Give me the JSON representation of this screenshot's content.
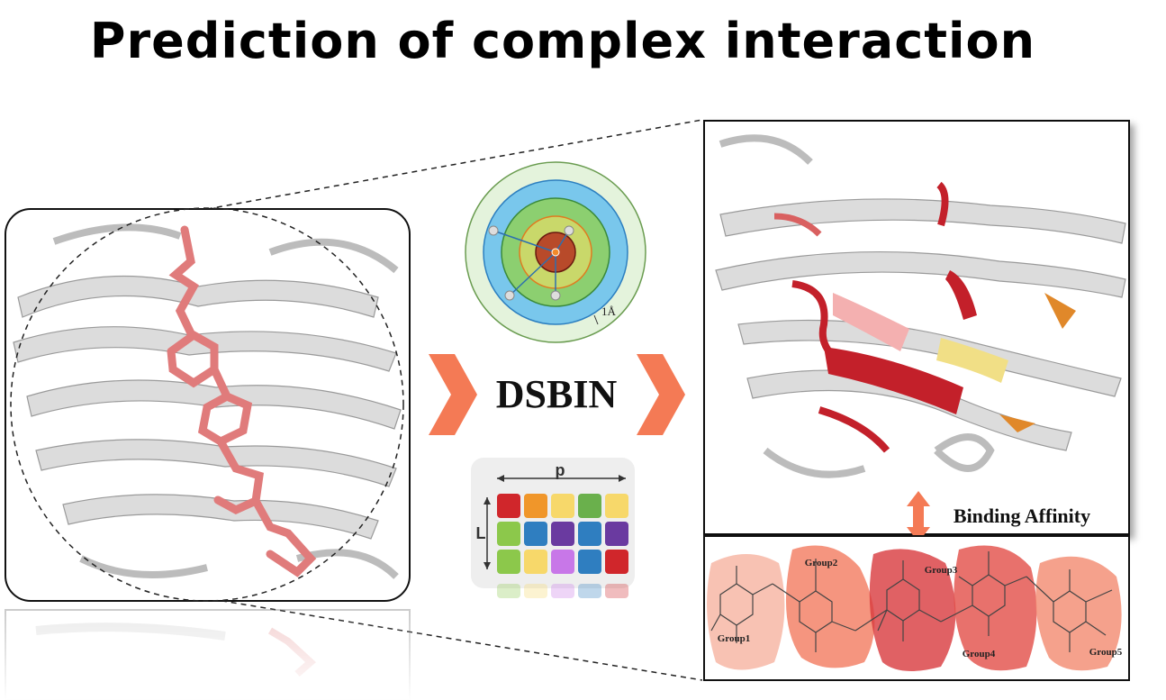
{
  "title": "Prediction of complex interaction",
  "method_label": "DSBIN",
  "shell_width_label": "1Å",
  "matrix": {
    "width_label": "p",
    "height_label": "L",
    "cell_colors": [
      [
        "#d0262b",
        "#f0962a",
        "#f7d86a",
        "#6ab04c",
        "#f7d86a"
      ],
      [
        "#8cc84b",
        "#2f7ec0",
        "#6a3aa0",
        "#2f7ec0",
        "#6a3aa0"
      ],
      [
        "#8cc84b",
        "#f7d86a",
        "#c877e8",
        "#2f7ec0",
        "#d0262b"
      ]
    ]
  },
  "binding_label": "Binding Affinity",
  "groups": [
    {
      "label": "Group1",
      "color": "#f6b3a0"
    },
    {
      "label": "Group2",
      "color": "#f27a5f"
    },
    {
      "label": "Group3",
      "color": "#d8393d"
    },
    {
      "label": "Group4",
      "color": "#e24e47"
    },
    {
      "label": "Group5",
      "color": "#f38a6f"
    }
  ],
  "colors": {
    "arrow": "#f47a55",
    "ligand": "#e07b7b",
    "protein": "#d6d6d6",
    "highlight_red": "#c3202a",
    "highlight_yellow": "#f1df86",
    "highlight_orange": "#e0882a"
  }
}
